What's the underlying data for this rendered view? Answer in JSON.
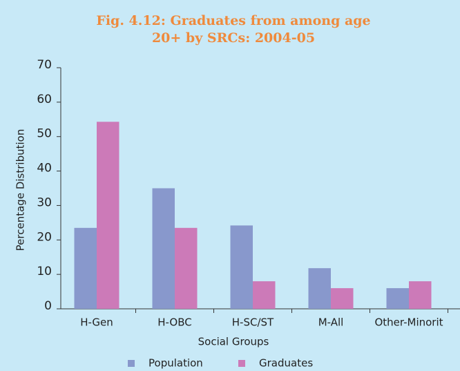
{
  "chart_data": {
    "type": "bar",
    "title": "Fig. 4.12: Graduates from among age 20+ by SRCs: 2004-05",
    "x_label": "Social Groups",
    "y_label": "Percentage Distribution",
    "categories": [
      "H-Gen",
      "H-OBC",
      "H-SC/ST",
      "M-All",
      "Other-Minorit"
    ],
    "series": [
      {
        "name": "Population",
        "color": "#8898cc",
        "values": [
          23.5,
          35,
          24.2,
          11.8,
          6
        ]
      },
      {
        "name": "Graduates",
        "color": "#cc7ab8",
        "values": [
          54.3,
          23.5,
          8,
          6,
          8
        ]
      }
    ],
    "ylim": [
      0,
      70
    ],
    "yticks": [
      0,
      10,
      20,
      30,
      40,
      50,
      60,
      70
    ],
    "grid": false,
    "legend": "bottom"
  }
}
